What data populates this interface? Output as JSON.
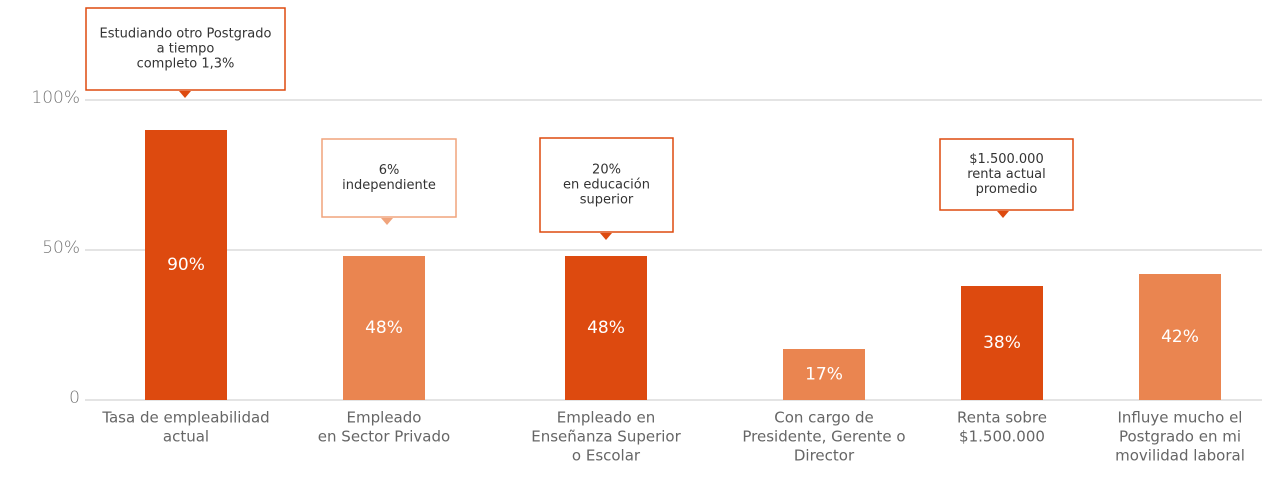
{
  "chart_data": {
    "type": "bar",
    "categories": [
      [
        "Tasa de empleabilidad",
        "actual"
      ],
      [
        "Empleado",
        "en Sector Privado"
      ],
      [
        "Empleado en",
        "Enseñanza Superior",
        "o Escolar"
      ],
      [
        "Con cargo de",
        "Presidente, Gerente o",
        "Director"
      ],
      [
        "Renta sobre",
        "$1.500.000"
      ],
      [
        "Influye mucho el",
        "Postgrado en mi",
        "movilidad laboral"
      ]
    ],
    "values": [
      90,
      48,
      48,
      17,
      38,
      42
    ],
    "value_labels": [
      "90%",
      "48%",
      "48%",
      "17%",
      "38%",
      "42%"
    ],
    "colors": [
      "#dd4a0f",
      "#ea8550",
      "#dd4a0f",
      "#ea8550",
      "#dd4a0f",
      "#ea8550"
    ],
    "ylim": [
      0,
      100
    ],
    "yticks": [
      0,
      {
        "value": 50,
        "label": "50%"
      },
      {
        "value": 100,
        "label": "100%"
      }
    ],
    "grid": true,
    "annotations": [
      {
        "lines": [
          "Estudiando otro Postgrado",
          "a tiempo",
          "completo 1,3%"
        ],
        "color": "#dd4a0f"
      },
      {
        "lines": [
          "6%",
          "independiente"
        ],
        "color": "#f0a47c"
      },
      {
        "lines": [
          "20%",
          "en educación",
          "superior"
        ],
        "color": "#dd4a0f"
      },
      {
        "lines": [
          "$1.500.000",
          "renta actual",
          "promedio"
        ],
        "color": "#dd4a0f"
      }
    ]
  }
}
